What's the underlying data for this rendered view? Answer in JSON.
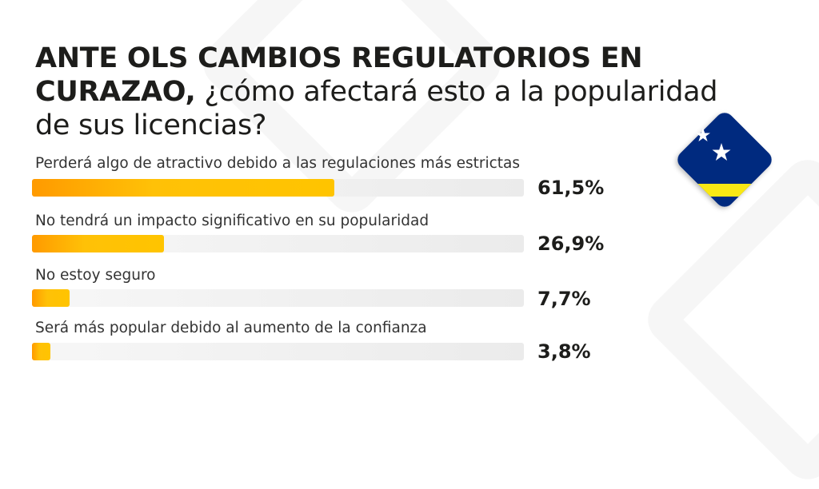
{
  "chart_data": {
    "type": "bar",
    "orientation": "horizontal",
    "title_bold": "ANTE OLS CAMBIOS REGULATORIOS EN CURAZAO,",
    "title_regular": " ¿cómo afectará esto a la popularidad de sus licencias?",
    "categories": [
      "Perderá algo de atractivo debido a las regulaciones más estrictas",
      "No tendrá un impacto significativo en su popularidad",
      "No estoy seguro",
      "Será más popular debido al aumento de la confianza"
    ],
    "values": [
      61.5,
      26.9,
      7.7,
      3.8
    ],
    "value_labels": [
      "61,5%",
      "26,9%",
      "7,7%",
      "3,8%"
    ],
    "xlim": [
      0,
      100
    ],
    "grid": false,
    "colors": {
      "bar_start": "#ff9a00",
      "bar_end": "#ffc400",
      "track": "#eeeeee"
    }
  },
  "flag": {
    "name": "curacao-flag",
    "colors": {
      "blue": "#002b7f",
      "yellow": "#f9e814",
      "star": "#ffffff"
    }
  }
}
